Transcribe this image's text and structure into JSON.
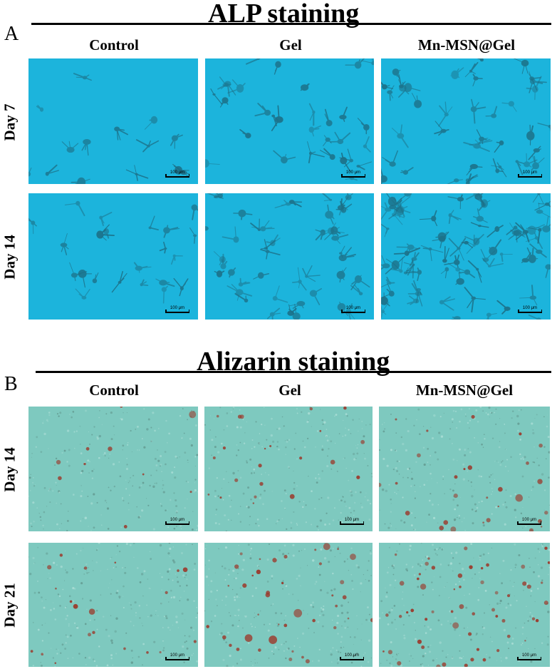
{
  "panel_a": {
    "letter": "A",
    "title": "ALP staining",
    "columns": [
      "Control",
      "Gel",
      "Mn-MSN@Gel"
    ],
    "rows": [
      "Day 7",
      "Day 14"
    ],
    "scale_label": "100 μm",
    "colors": {
      "background": "#1cb4dc",
      "cells": "#1d6f86"
    }
  },
  "panel_b": {
    "letter": "B",
    "title": "Alizarin staining",
    "columns": [
      "Control",
      "Gel",
      "Mn-MSN@Gel"
    ],
    "rows": [
      "Day 14",
      "Day 21"
    ],
    "scale_label": "100 μm",
    "colors": {
      "background": "#7ec9bf",
      "nodules": "#9b3a2c"
    }
  }
}
